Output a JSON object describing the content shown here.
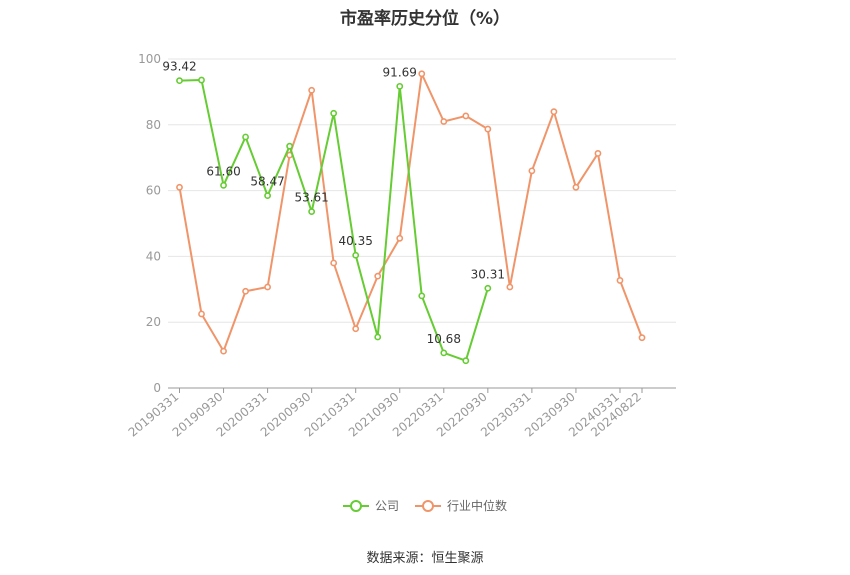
{
  "chart_data": {
    "type": "line",
    "title": "市盈率历史分位（%）",
    "source": "数据来源：恒生聚源",
    "ylim": [
      0,
      100
    ],
    "yticks": [
      0,
      20,
      40,
      60,
      80,
      100
    ],
    "x": [
      "20190331",
      "20190630",
      "20190930",
      "20191231",
      "20200331",
      "20200630",
      "20200930",
      "20201231",
      "20210331",
      "20210630",
      "20210930",
      "20211231",
      "20220331",
      "20220630",
      "20220930",
      "20221231",
      "20230331",
      "20230630",
      "20230930",
      "20231231",
      "20240331",
      "20240822"
    ],
    "xtick_labels": [
      "20190331",
      "20190930",
      "20200331",
      "20200930",
      "20210331",
      "20210930",
      "20220331",
      "20220930",
      "20230331",
      "20230930",
      "20240331",
      "20240822"
    ],
    "xtick_indices": [
      0,
      2,
      4,
      6,
      8,
      10,
      12,
      14,
      16,
      18,
      20,
      21
    ],
    "series": [
      {
        "name": "公司",
        "color": "#66cc33",
        "values": [
          93.42,
          93.6,
          61.6,
          76.3,
          58.47,
          73.5,
          53.61,
          83.5,
          40.35,
          15.5,
          91.69,
          28.0,
          10.68,
          8.3,
          30.31,
          null,
          null,
          null,
          null,
          null,
          null,
          null
        ],
        "labels": [
          {
            "index": 0,
            "text": "93.42"
          },
          {
            "index": 2,
            "text": "61.60"
          },
          {
            "index": 4,
            "text": "58.47"
          },
          {
            "index": 6,
            "text": "53.61"
          },
          {
            "index": 8,
            "text": "40.35"
          },
          {
            "index": 10,
            "text": "91.69"
          },
          {
            "index": 12,
            "text": "10.68"
          },
          {
            "index": 14,
            "text": "30.31"
          }
        ]
      },
      {
        "name": "行业中位数",
        "color": "#f0956a",
        "values": [
          61.0,
          22.5,
          11.2,
          29.4,
          30.7,
          70.8,
          90.5,
          38.0,
          18.0,
          34.0,
          45.5,
          95.5,
          81.0,
          82.7,
          78.7,
          30.7,
          66.0,
          84.0,
          61.0,
          71.3,
          32.7,
          15.3
        ]
      }
    ],
    "grid": true,
    "legend_position": "bottom"
  }
}
